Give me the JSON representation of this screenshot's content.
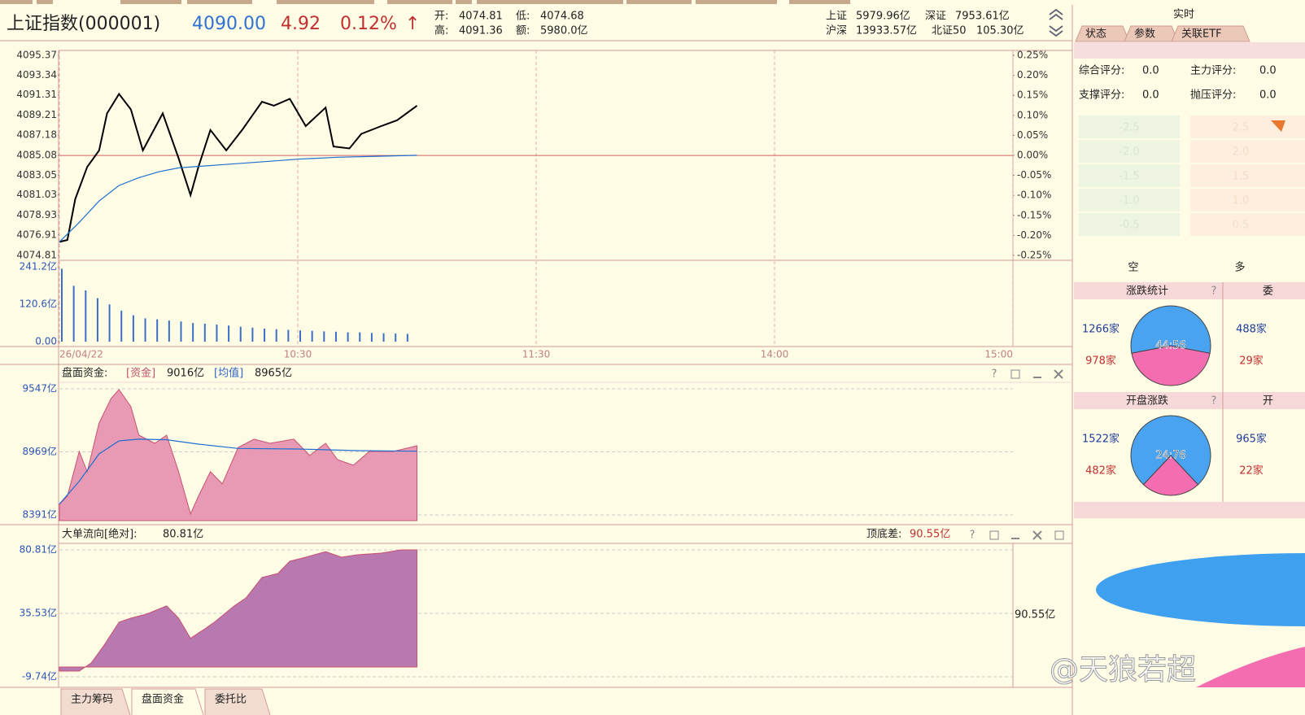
{
  "header": {
    "title": "上证指数(000001)",
    "price": "4090.00",
    "change": "4.92",
    "change_pct": "0.12%",
    "arrow": "↑",
    "stats": [
      [
        "开:",
        "4074.81"
      ],
      [
        "低:",
        "4074.68"
      ],
      [
        "高:",
        "4091.36"
      ],
      [
        "额:",
        "5980.0亿"
      ]
    ],
    "turnover": [
      [
        "上证",
        "5979.96亿"
      ],
      [
        "深证",
        "7953.61亿"
      ],
      [
        "沪深",
        "13933.57亿"
      ],
      [
        "北证50",
        "105.30亿"
      ]
    ]
  },
  "fund_panel": {
    "title": "盘面资金:",
    "fund_tag": "[资金]",
    "fund": "9016亿",
    "avg_tag": "[均值]",
    "avg": "8965亿",
    "help": "?"
  },
  "flow_panel": {
    "title": "大单流向[绝对]:",
    "value": "80.81亿",
    "range_label": "顶底差:",
    "range": "90.55亿",
    "side_label": "90.55亿",
    "help": "?"
  },
  "bottom_tabs": [
    "主力筹码",
    "盘面资金",
    "委托比"
  ],
  "side_panel": {
    "title": "实时",
    "tabs": [
      "状态",
      "参数",
      "关联ETF"
    ],
    "scores": [
      [
        "综合评分:",
        "0.0"
      ],
      [
        "主力评分:",
        "0.0"
      ],
      [
        "支撑评分:",
        "0.0"
      ],
      [
        "抛压评分:",
        "0.0"
      ]
    ],
    "scale_left": [
      "-2.5",
      "-2.0",
      "-1.5",
      "-1.0",
      "-0.5"
    ],
    "scale_right": [
      "2.5",
      "2.0",
      "1.5",
      "1.0",
      "0.5"
    ],
    "bear": "空",
    "bull": "多",
    "rise_fall": {
      "title": "涨跌统计",
      "help": "?",
      "up": "1266家",
      "down": "978家",
      "next_title": "委",
      "next_up": "488家",
      "next_down": "29家"
    },
    "open_rise_fall": {
      "title": "开盘涨跌",
      "help": "?",
      "up": "1522家",
      "down": "482家",
      "next_title": "开",
      "next_up": "965家",
      "next_down": "22家"
    }
  },
  "watermark": "@天狼若超",
  "chart_data": [
    {
      "type": "line",
      "grid": true,
      "xlim": [
        0,
        240
      ],
      "xticks": [
        {
          "value": 0,
          "label": "26/04/22"
        },
        {
          "value": 60,
          "label": "10:30"
        },
        {
          "value": 120,
          "label": "11:30"
        },
        {
          "value": 180,
          "label": "14:00"
        },
        {
          "value": 240,
          "label": "15:00"
        }
      ],
      "ylim": [
        4074.81,
        4095.37
      ],
      "yticks": [
        4095.37,
        4093.34,
        4091.31,
        4089.21,
        4087.18,
        4085.08,
        4083.05,
        4081.03,
        4078.93,
        4076.91,
        4074.81
      ],
      "y2lim": [
        -0.25,
        0.25
      ],
      "y2ticks": [
        {
          "value": 0.25,
          "label": "0.25%"
        },
        {
          "value": 0.2,
          "label": "0.20%"
        },
        {
          "value": 0.15,
          "label": "0.15%"
        },
        {
          "value": 0.1,
          "label": "0.10%"
        },
        {
          "value": 0.05,
          "label": "0.05%"
        },
        {
          "value": 0,
          "label": "0.00%"
        },
        {
          "value": -0.05,
          "label": "-0.05%"
        },
        {
          "value": -0.1,
          "label": "-0.10%"
        },
        {
          "value": -0.15,
          "label": "-0.15%"
        },
        {
          "value": -0.2,
          "label": "-0.20%"
        },
        {
          "value": -0.25,
          "label": "-0.25%"
        }
      ],
      "reference_line": 4085.08,
      "series": [
        {
          "color": "#000000",
          "kind": "line",
          "x": [
            0,
            2,
            4,
            7,
            10,
            12,
            15,
            18,
            21,
            26,
            30,
            33,
            35,
            38,
            42,
            46,
            51,
            54,
            58,
            62,
            67,
            69,
            73,
            76,
            81,
            85,
            90
          ],
          "values": [
            4076.2,
            4076.4,
            4080.6,
            4083.9,
            4085.6,
            4089.4,
            4091.4,
            4089.8,
            4085.6,
            4089.4,
            4084.8,
            4081.0,
            4083.9,
            4087.7,
            4085.6,
            4087.7,
            4090.6,
            4090.2,
            4090.9,
            4088.1,
            4090.0,
            4086.0,
            4085.8,
            4087.3,
            4088.1,
            4088.7,
            4090.2
          ]
        },
        {
          "color": "#1e6fd0",
          "kind": "line",
          "x": [
            0,
            5,
            10,
            15,
            20,
            25,
            30,
            40,
            50,
            60,
            70,
            80,
            90
          ],
          "values": [
            4076.2,
            4078.2,
            4080.4,
            4082.0,
            4082.8,
            4083.4,
            4083.8,
            4084.1,
            4084.4,
            4084.7,
            4084.9,
            4085.0,
            4085.1
          ]
        }
      ]
    },
    {
      "type": "bar",
      "color": "#3a6fc4",
      "xlim": [
        0,
        240
      ],
      "ylim": [
        0,
        241.2
      ],
      "yticks": [
        {
          "value": 241.2,
          "label": "241.2亿"
        },
        {
          "value": 120.6,
          "label": "120.6亿"
        },
        {
          "value": 0,
          "label": "0.00"
        }
      ],
      "x": [
        0,
        3,
        6,
        9,
        12,
        15,
        18,
        21,
        24,
        27,
        30,
        33,
        36,
        39,
        42,
        45,
        48,
        51,
        54,
        57,
        60,
        63,
        66,
        69,
        72,
        75,
        78,
        81,
        84,
        87
      ],
      "values": [
        235,
        180,
        165,
        140,
        120,
        100,
        85,
        75,
        72,
        68,
        65,
        60,
        58,
        55,
        52,
        48,
        45,
        42,
        40,
        38,
        36,
        35,
        33,
        32,
        30,
        30,
        28,
        27,
        26,
        25
      ]
    },
    {
      "type": "line",
      "ygrid": true,
      "xlim": [
        0,
        240
      ],
      "ylim": [
        8391,
        9547
      ],
      "yticks": [
        {
          "value": 9547,
          "label": "9547亿"
        },
        {
          "value": 8969,
          "label": "8969亿"
        },
        {
          "value": 8391,
          "label": "8391亿"
        }
      ],
      "series": [
        {
          "color": "#e89ab4",
          "kind": "area",
          "x": [
            0,
            2,
            5,
            7,
            10,
            13,
            15,
            18,
            20,
            24,
            27,
            30,
            33,
            35,
            38,
            41,
            45,
            49,
            53,
            59,
            63,
            67,
            70,
            74,
            78,
            84,
            90
          ],
          "values": [
            8488,
            8563,
            8973,
            8787,
            9234,
            9458,
            9540,
            9383,
            9122,
            9047,
            9122,
            8787,
            8400,
            8563,
            8787,
            8675,
            9010,
            9085,
            9047,
            9085,
            8936,
            9047,
            8898,
            8846,
            8973,
            8973,
            9025
          ]
        },
        {
          "color": "#1e6fd0",
          "kind": "line",
          "x": [
            0,
            5,
            10,
            15,
            20,
            27,
            35,
            45,
            60,
            75,
            90
          ],
          "values": [
            8490,
            8700,
            8950,
            9070,
            9085,
            9080,
            9040,
            9000,
            8995,
            8980,
            8975
          ]
        }
      ]
    },
    {
      "type": "line",
      "ygrid": true,
      "xlim": [
        0,
        240
      ],
      "ylim": [
        -9.74,
        80.81
      ],
      "yticks": [
        {
          "value": 80.81,
          "label": "80.81亿"
        },
        {
          "value": 35.53,
          "label": "35.53亿"
        },
        {
          "value": -9.74,
          "label": "-9.74亿"
        }
      ],
      "series": [
        {
          "color": "#b878b0",
          "kind": "area",
          "x": [
            0,
            5,
            8,
            11,
            15,
            18,
            22,
            27,
            30,
            33,
            36,
            39,
            44,
            47,
            51,
            55,
            58,
            62,
            67,
            71,
            75,
            81,
            86,
            90
          ],
          "values": [
            -5.7,
            -5.7,
            0.1,
            11.7,
            29.2,
            32.1,
            35.0,
            40.8,
            32.1,
            17.7,
            23.3,
            29.2,
            40.8,
            46.6,
            61.1,
            64.0,
            72.7,
            75.6,
            79.6,
            75.6,
            77.3,
            78.5,
            80.8,
            80.81
          ]
        }
      ]
    },
    {
      "type": "pie",
      "label": "44:56",
      "values": [
        44,
        56
      ],
      "colors": [
        "#f46db1",
        "#4aa3f0"
      ]
    },
    {
      "type": "pie",
      "label": "24:76",
      "values": [
        24,
        76
      ],
      "colors": [
        "#f46db1",
        "#4aa3f0"
      ]
    }
  ]
}
